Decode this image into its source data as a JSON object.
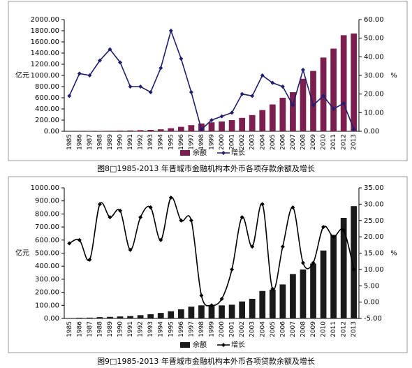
{
  "chart_data": [
    {
      "type": "combo",
      "caption": "图8□1985-2013 年晋城市金融机构本外币各项存款余额及增长",
      "ylabel": "亿元",
      "y2label": "%",
      "smooth": false,
      "categories": [
        "1985",
        "1986",
        "1987",
        "1988",
        "1989",
        "1990",
        "1991",
        "1992",
        "1993",
        "1994",
        "1995",
        "1996",
        "1997",
        "1998",
        "1999",
        "2000",
        "2001",
        "2002",
        "2003",
        "2004",
        "2005",
        "2006",
        "2007",
        "2008",
        "2009",
        "2010",
        "2011",
        "2012",
        "2013"
      ],
      "series": [
        {
          "name": "余额",
          "type": "bar",
          "axis": "y",
          "color": "#7b1f4f",
          "values": [
            2,
            3,
            4,
            6,
            9,
            12,
            15,
            20,
            25,
            35,
            55,
            80,
            110,
            140,
            160,
            175,
            200,
            240,
            290,
            380,
            480,
            600,
            700,
            940,
            1080,
            1320,
            1480,
            1720,
            1750
          ]
        },
        {
          "name": "增长",
          "type": "line",
          "axis": "y2",
          "color": "#1f1f6e",
          "values": [
            19,
            31,
            30,
            38,
            44,
            37,
            24,
            24,
            21,
            34,
            54,
            39,
            21,
            1,
            6,
            8,
            10,
            20,
            19,
            30,
            26,
            24,
            14,
            33,
            14,
            19,
            12,
            15,
            1
          ]
        }
      ],
      "ylim": [
        0,
        2000
      ],
      "yticks": [
        {
          "value": 0,
          "label": "0.00"
        },
        {
          "value": 200,
          "label": "200.00"
        },
        {
          "value": 400,
          "label": "400.00"
        },
        {
          "value": 600,
          "label": "600.00"
        },
        {
          "value": 800,
          "label": "800.00"
        },
        {
          "value": 1000,
          "label": "1000.00"
        },
        {
          "value": 1200,
          "label": "1200.00"
        },
        {
          "value": 1400,
          "label": "1400.00"
        },
        {
          "value": 1600,
          "label": "1600.00"
        },
        {
          "value": 1800,
          "label": "1800.00"
        },
        {
          "value": 2000,
          "label": "2000.00"
        }
      ],
      "y2lim": [
        0,
        60
      ],
      "y2ticks": [
        {
          "value": 0,
          "label": "0.00"
        },
        {
          "value": 10,
          "label": "10.00"
        },
        {
          "value": 20,
          "label": "20.00"
        },
        {
          "value": 30,
          "label": "30.00"
        },
        {
          "value": 40,
          "label": "40.00"
        },
        {
          "value": 50,
          "label": "50.00"
        },
        {
          "value": 60,
          "label": "60.00"
        }
      ]
    },
    {
      "type": "combo",
      "caption": "图9□1985-2013 年晋城市金融机构本外币各项贷款余额及增长",
      "ylabel": "亿元",
      "y2label": "%",
      "smooth": true,
      "categories": [
        "1985",
        "1986",
        "1987",
        "1988",
        "1989",
        "1990",
        "1991",
        "1992",
        "1993",
        "1994",
        "1995",
        "1996",
        "1997",
        "1998",
        "1999",
        "2000",
        "2001",
        "2002",
        "2003",
        "2004",
        "2005",
        "2006",
        "2007",
        "2008",
        "2009",
        "2010",
        "2011",
        "2012",
        "2013"
      ],
      "series": [
        {
          "name": "余额",
          "type": "bar",
          "axis": "y",
          "color": "#1a1a1a",
          "values": [
            3,
            5,
            6,
            10,
            12,
            15,
            18,
            25,
            32,
            42,
            55,
            70,
            90,
            100,
            100,
            100,
            105,
            130,
            150,
            210,
            220,
            260,
            340,
            375,
            420,
            520,
            640,
            770,
            860
          ]
        },
        {
          "name": "增长",
          "type": "line",
          "axis": "y2",
          "color": "#000000",
          "values": [
            18,
            19,
            13,
            30,
            26,
            28,
            16,
            26,
            29,
            19,
            32,
            25,
            25,
            2,
            -1,
            1,
            10,
            26,
            17,
            30,
            4,
            17,
            29,
            12,
            12,
            23,
            20,
            22,
            10
          ]
        }
      ],
      "ylim": [
        0,
        1000
      ],
      "yticks": [
        {
          "value": 0,
          "label": "0.00"
        },
        {
          "value": 100,
          "label": "100.00"
        },
        {
          "value": 200,
          "label": "200.00"
        },
        {
          "value": 300,
          "label": "300.00"
        },
        {
          "value": 400,
          "label": "400.00"
        },
        {
          "value": 500,
          "label": "500.00"
        },
        {
          "value": 600,
          "label": "600.00"
        },
        {
          "value": 700,
          "label": "700.00"
        },
        {
          "value": 800,
          "label": "800.00"
        },
        {
          "value": 900,
          "label": "900.00"
        },
        {
          "value": 1000,
          "label": "1000.00"
        }
      ],
      "y2lim": [
        -5,
        35
      ],
      "y2ticks": [
        {
          "value": -5,
          "label": "-5.00"
        },
        {
          "value": 0,
          "label": "0.00"
        },
        {
          "value": 5,
          "label": "5.00"
        },
        {
          "value": 10,
          "label": "10.00"
        },
        {
          "value": 15,
          "label": "15.00"
        },
        {
          "value": 20,
          "label": "20.00"
        },
        {
          "value": 25,
          "label": "25.00"
        },
        {
          "value": 30,
          "label": "30.00"
        },
        {
          "value": 35,
          "label": "35.00"
        }
      ]
    }
  ]
}
